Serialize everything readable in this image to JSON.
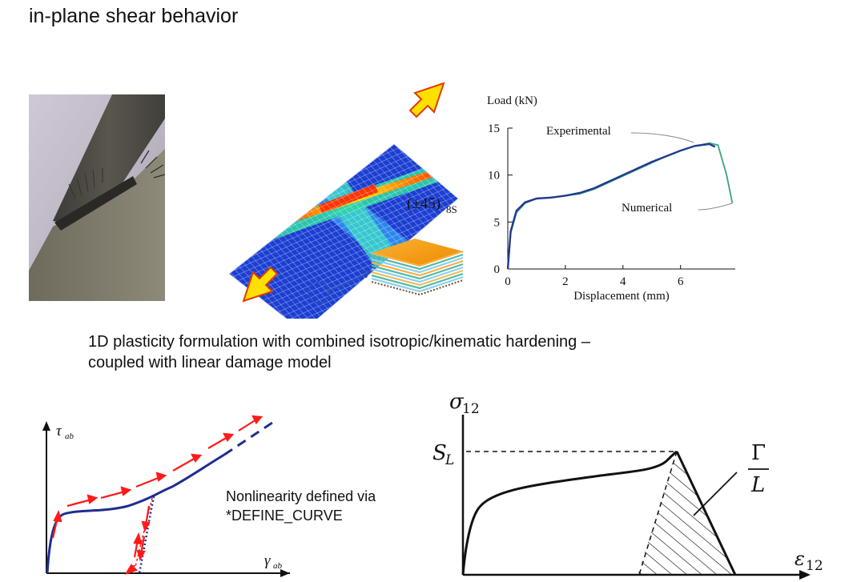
{
  "slide": {
    "title": "in-plane shear behavior",
    "body_line1": "1D plasticity formulation with combined isotropic/kinematic hardening –",
    "body_line2": "coupled with linear damage model",
    "note_line1": "Nonlinearity defined via",
    "note_line2": "*DEFINE_CURVE"
  },
  "fe_model": {
    "layup_label": "(±45)",
    "layup_subscript": "8S"
  },
  "load_chart": {
    "y_axis_label": "Load (kN)",
    "x_axis_label": "Displacement (mm)",
    "annotation_experimental": "Experimental",
    "annotation_numerical": "Numerical",
    "x_ticks": [
      "0",
      "2",
      "4",
      "6"
    ],
    "y_ticks": [
      "0",
      "5",
      "10",
      "15"
    ]
  },
  "tau_gamma_sketch": {
    "y_label_main": "τ",
    "y_label_sub": "ab",
    "x_label_main": "γ",
    "x_label_sub": "ab"
  },
  "sigma_eps_sketch": {
    "y_label_main": "σ",
    "y_label_sub": "12",
    "x_label_main": "ε",
    "x_label_sub": "12",
    "strength_main": "S",
    "strength_sub": "L",
    "energy_num": "Γ",
    "energy_den": "L"
  },
  "chart_data": {
    "type": "line",
    "xlabel": "Displacement (mm)",
    "ylabel": "Load (kN)",
    "xlim": [
      0,
      7.9
    ],
    "ylim": [
      0,
      15
    ],
    "series": [
      {
        "name": "Experimental",
        "x": [
          0,
          0.1,
          0.3,
          0.6,
          1.0,
          1.5,
          2.0,
          2.5,
          3.0,
          3.5,
          4.0,
          4.5,
          5.0,
          5.5,
          6.0,
          6.5,
          7.0,
          7.2
        ],
        "y": [
          0,
          4.0,
          6.2,
          7.1,
          7.5,
          7.6,
          7.8,
          8.1,
          8.6,
          9.3,
          10.0,
          10.7,
          11.4,
          12.0,
          12.6,
          13.1,
          13.3,
          13.0
        ]
      },
      {
        "name": "Numerical",
        "x": [
          0,
          0.1,
          0.3,
          0.6,
          1.0,
          1.5,
          2.0,
          2.5,
          3.0,
          3.5,
          4.0,
          4.5,
          5.0,
          5.5,
          6.0,
          6.5,
          7.0,
          7.3,
          7.6,
          7.8
        ],
        "y": [
          0,
          3.8,
          6.0,
          7.0,
          7.5,
          7.6,
          7.8,
          8.0,
          8.5,
          9.2,
          9.9,
          10.6,
          11.3,
          12.0,
          12.6,
          13.1,
          13.4,
          13.2,
          10.0,
          7.0
        ]
      }
    ]
  }
}
